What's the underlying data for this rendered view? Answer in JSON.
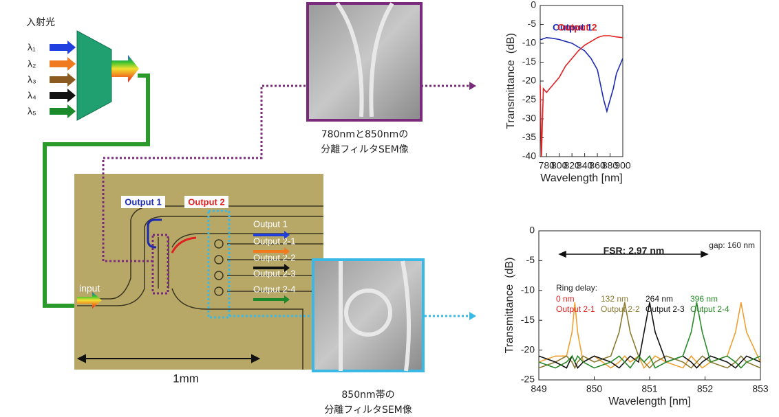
{
  "chart_data": [
    {
      "type": "line",
      "y_label": "Transmittance  (dB)",
      "x_label": "Wavelength [nm]",
      "xlim": [
        770,
        900
      ],
      "xticks": [
        780,
        800,
        820,
        840,
        860,
        880,
        900
      ],
      "ylim": [
        -40,
        0
      ],
      "yticks": [
        0,
        -5,
        -10,
        -15,
        -20,
        -25,
        -30,
        -35,
        -40
      ],
      "x": [
        770,
        772,
        775,
        780,
        790,
        800,
        810,
        820,
        830,
        840,
        850,
        860,
        865,
        870,
        875,
        880,
        885,
        890,
        900
      ],
      "series": [
        {
          "name": "Output 1",
          "color": "#1c2ab0",
          "values": [
            -9,
            -9,
            -8.8,
            -8.5,
            -8.7,
            -9,
            -9.5,
            -10,
            -11,
            -12,
            -14,
            -17,
            -21,
            -25,
            -28,
            -25,
            -22,
            -18,
            -14
          ]
        },
        {
          "name": "Output 2",
          "color": "#e02020",
          "values": [
            -21,
            -40,
            -22,
            -23,
            -21,
            -19,
            -16,
            -14,
            -12,
            -10.5,
            -9.5,
            -8.5,
            -8.2,
            -8,
            -8,
            -8,
            -8.2,
            -8.3,
            -8.5
          ]
        }
      ]
    },
    {
      "type": "line",
      "y_label": "Transmittance  (dB)",
      "x_label": "Wavelength [nm]",
      "xlim": [
        849,
        853
      ],
      "xticks": [
        849,
        850,
        851,
        852,
        853
      ],
      "ylim": [
        -25,
        0
      ],
      "yticks": [
        0,
        -5,
        -10,
        -15,
        -20,
        -25
      ],
      "legend_title": "Ring delay:",
      "annotations": [
        "FSR: 2.97 nm",
        "gap: 160 nm"
      ],
      "x": [
        849,
        849.3,
        849.5,
        849.6,
        849.65,
        849.7,
        849.8,
        850,
        850.3,
        850.45,
        850.55,
        850.65,
        850.8,
        850.9,
        851,
        851.1,
        851.3,
        851.6,
        851.75,
        851.85,
        851.95,
        852.1,
        852.4,
        852.55,
        852.65,
        852.75,
        853
      ],
      "series": [
        {
          "name": "Output 2-1",
          "delay": "0 nm",
          "color": "#f0a030",
          "label_color": "#e02020",
          "values": [
            -22,
            -21,
            -21,
            -17,
            -12,
            -17,
            -22,
            -21,
            -23,
            -22,
            -21,
            -22,
            -21,
            -23,
            -22,
            -21,
            -22,
            -23,
            -21,
            -22,
            -23,
            -22,
            -21,
            -17,
            -12,
            -17,
            -22
          ]
        },
        {
          "name": "Output 2-2",
          "delay": "132 nm",
          "color": "#8a7a30",
          "label_color": "#8a7a30",
          "values": [
            -23,
            -22,
            -21,
            -22,
            -23,
            -22,
            -21,
            -22,
            -21,
            -17,
            -12,
            -17,
            -21,
            -22,
            -23,
            -22,
            -21,
            -22,
            -23,
            -22,
            -21,
            -22,
            -23,
            -22,
            -21,
            -22,
            -23
          ]
        },
        {
          "name": "Output 2-3",
          "delay": "264 nm",
          "color": "#111111",
          "label_color": "#111111",
          "values": [
            -21,
            -22,
            -23,
            -21,
            -22,
            -23,
            -22,
            -21,
            -22,
            -23,
            -22,
            -21,
            -22,
            -17,
            -12,
            -17,
            -22,
            -21,
            -22,
            -23,
            -22,
            -21,
            -22,
            -23,
            -22,
            -21,
            -22
          ]
        },
        {
          "name": "Output 2-4",
          "delay": "396 nm",
          "color": "#2a8a2a",
          "label_color": "#2a8a2a",
          "values": [
            -22,
            -23,
            -22,
            -21,
            -22,
            -21,
            -22,
            -23,
            -22,
            -21,
            -22,
            -23,
            -21,
            -22,
            -21,
            -23,
            -22,
            -21,
            -17,
            -12,
            -17,
            -22,
            -21,
            -22,
            -23,
            -22,
            -21
          ]
        }
      ]
    }
  ],
  "diagram": {
    "input_label": "入射光",
    "wavelengths": [
      "λ₁",
      "λ₂",
      "λ₃",
      "λ₄",
      "λ₅"
    ],
    "chip": {
      "drop_label": "Output 1",
      "through_label": "Output 2",
      "outputs": [
        "Output 1",
        "Output 2-1",
        "Output 2-2",
        "Output 2-3",
        "Output 2-4"
      ],
      "input": "input"
    },
    "scale": "1mm",
    "sem_top_caption": [
      "780nmと850nmの",
      "分離フィルタSEM像"
    ],
    "sem_bottom_caption": [
      "850nm帯の",
      "分離フィルタSEM像"
    ]
  }
}
